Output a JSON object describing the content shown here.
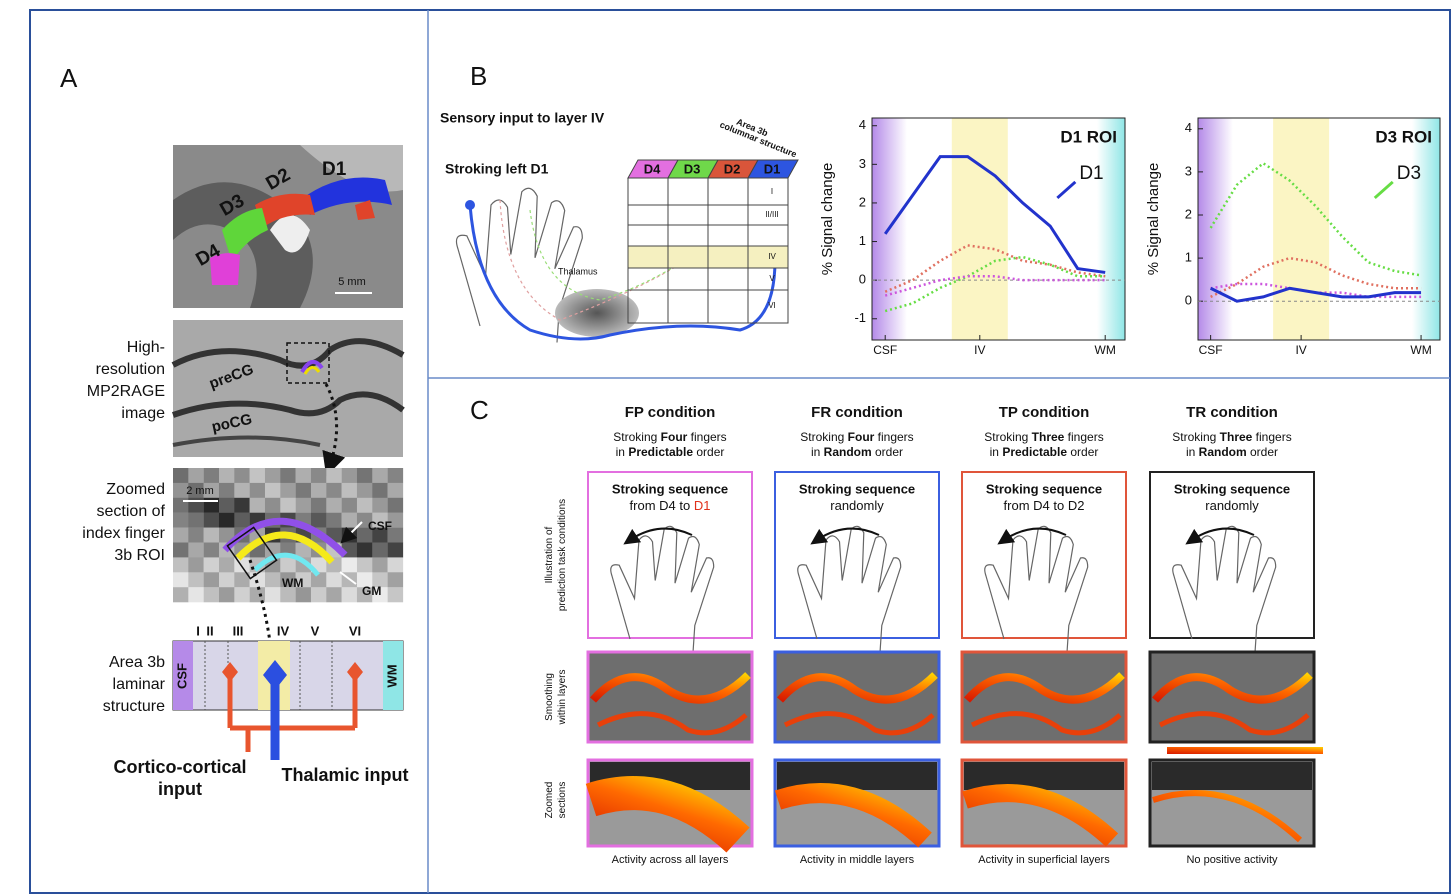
{
  "panel_a": {
    "label": "A",
    "fingers": [
      {
        "label": "D1",
        "color": "#2233dd"
      },
      {
        "label": "D2",
        "color": "#e0442a"
      },
      {
        "label": "D3",
        "color": "#5fd63a"
      },
      {
        "label": "D4",
        "color": "#e040d8"
      }
    ],
    "scale_1": "5 mm",
    "image_2_caption": [
      "High-",
      "resolution",
      "MP2RAGE",
      "image"
    ],
    "image_2_labels": [
      "preCG",
      "poCG"
    ],
    "image_3_caption": [
      "Zoomed",
      "section of",
      "index finger",
      "3b ROI"
    ],
    "scale_2": "2 mm",
    "image_3_labels": [
      "CSF",
      "WM",
      "GM"
    ],
    "laminar_caption": [
      "Area 3b",
      "laminar",
      "structure"
    ],
    "layers": [
      "I",
      "II",
      "III",
      "IV",
      "V",
      "VI"
    ],
    "bar_ends": [
      "CSF",
      "WM"
    ],
    "inputs": [
      {
        "label": [
          "Cortico-cortical",
          "input"
        ],
        "color": "#e8552e"
      },
      {
        "label": [
          "Thalamic input"
        ],
        "color": "#2b4fe0"
      }
    ]
  },
  "panel_b": {
    "label": "B",
    "heading": "Sensory input to layer IV",
    "stroking": "Stroking left D1",
    "thalamus": "Thalamus",
    "column_title": [
      "Area 3b",
      "columnar structure"
    ],
    "columns": [
      {
        "label": "D4",
        "color": "#e36fe0"
      },
      {
        "label": "D3",
        "color": "#6fd84a"
      },
      {
        "label": "D2",
        "color": "#d9553a"
      },
      {
        "label": "D1",
        "color": "#2d55e0"
      }
    ],
    "layers": [
      "I",
      "II/III",
      "IV",
      "V",
      "VI"
    ]
  },
  "chart_data": [
    {
      "type": "line",
      "title": "D1 ROI",
      "ylabel": "% Signal change",
      "annotation": "D1",
      "annotation_color": "#2233cc",
      "x": [
        0,
        0.125,
        0.25,
        0.375,
        0.5,
        0.625,
        0.75,
        0.875,
        1
      ],
      "xlim": [
        -0.06,
        1.09
      ],
      "xticks": [
        {
          "value": 0,
          "label": "CSF"
        },
        {
          "value": 0.43,
          "label": "IV"
        },
        {
          "value": 1,
          "label": "WM"
        }
      ],
      "ylim": [
        -1.55,
        4.2
      ],
      "yticks": [
        -1,
        0,
        1,
        2,
        3,
        4
      ],
      "series": [
        {
          "color": "#2233cc",
          "dashed": false,
          "values": [
            1.2,
            2.2,
            3.2,
            3.2,
            2.7,
            2.0,
            1.4,
            0.3,
            0.2
          ]
        },
        {
          "color": "#e07060",
          "dashed": true,
          "values": [
            -0.3,
            0.0,
            0.5,
            0.9,
            0.8,
            0.5,
            0.4,
            0.2,
            0.1
          ]
        },
        {
          "color": "#66dd44",
          "dashed": true,
          "values": [
            -0.8,
            -0.6,
            -0.2,
            0.1,
            0.5,
            0.6,
            0.4,
            0.1,
            0.1
          ]
        },
        {
          "color": "#cc55dd",
          "dashed": true,
          "values": [
            -0.4,
            -0.2,
            0.0,
            0.1,
            0.1,
            0.0,
            0.0,
            0.0,
            0.0
          ]
        }
      ]
    },
    {
      "type": "line",
      "title": "D3 ROI",
      "ylabel": "% Signal change",
      "annotation": "D3",
      "annotation_color": "#66dd44",
      "x": [
        0,
        0.125,
        0.25,
        0.375,
        0.5,
        0.625,
        0.75,
        0.875,
        1
      ],
      "xlim": [
        -0.06,
        1.09
      ],
      "xticks": [
        {
          "value": 0,
          "label": "CSF"
        },
        {
          "value": 0.43,
          "label": "IV"
        },
        {
          "value": 1,
          "label": "WM"
        }
      ],
      "ylim": [
        -0.9,
        4.25
      ],
      "yticks": [
        0,
        1,
        2,
        3,
        4
      ],
      "series": [
        {
          "color": "#66dd44",
          "dashed": true,
          "values": [
            1.7,
            2.7,
            3.2,
            2.8,
            2.2,
            1.5,
            0.9,
            0.7,
            0.6
          ]
        },
        {
          "color": "#e07060",
          "dashed": true,
          "values": [
            0.1,
            0.4,
            0.8,
            1.0,
            0.9,
            0.6,
            0.4,
            0.3,
            0.3
          ]
        },
        {
          "color": "#cc55dd",
          "dashed": true,
          "values": [
            0.3,
            0.4,
            0.4,
            0.3,
            0.2,
            0.2,
            0.1,
            0.1,
            0.1
          ]
        },
        {
          "color": "#2233cc",
          "dashed": false,
          "values": [
            0.3,
            0.0,
            0.1,
            0.3,
            0.2,
            0.1,
            0.1,
            0.2,
            0.2
          ]
        }
      ]
    }
  ],
  "panel_c": {
    "label": "C",
    "row_labels": [
      [
        "Illustration of",
        "prediction task conditions"
      ],
      [
        "Smoothing",
        "within layers"
      ],
      [
        "Zoomed",
        "sections"
      ]
    ],
    "conditions": [
      {
        "title": "FP condition",
        "description": [
          [
            "Stroking ",
            "Four",
            " fingers"
          ],
          [
            "in ",
            "Predictable",
            " order"
          ]
        ],
        "box_color": "#e36fe0",
        "box_title": "Stroking sequence",
        "box_text": [
          "from D4 to ",
          "D1"
        ],
        "caption": "Activity across all layers"
      },
      {
        "title": "FR condition",
        "description": [
          [
            "Stroking ",
            "Four",
            " fingers"
          ],
          [
            "in ",
            "Random",
            " order"
          ]
        ],
        "box_color": "#3b5fe0",
        "box_title": "Stroking sequence",
        "box_text": [
          "randomly"
        ],
        "caption": "Activity in middle layers"
      },
      {
        "title": "TP condition",
        "description": [
          [
            "Stroking ",
            "Three",
            " fingers"
          ],
          [
            "in ",
            "Predictable",
            " order"
          ]
        ],
        "box_color": "#e0553a",
        "box_title": "Stroking sequence",
        "box_text": [
          "from D4 to D2"
        ],
        "caption": "Activity in superficial layers"
      },
      {
        "title": "TR condition",
        "description": [
          [
            "Stroking ",
            "Three",
            " fingers"
          ],
          [
            "in ",
            "Random",
            " order"
          ]
        ],
        "box_color": "#222222",
        "box_title": "Stroking sequence",
        "box_text": [
          "randomly"
        ],
        "caption": "No positive activity"
      }
    ]
  }
}
